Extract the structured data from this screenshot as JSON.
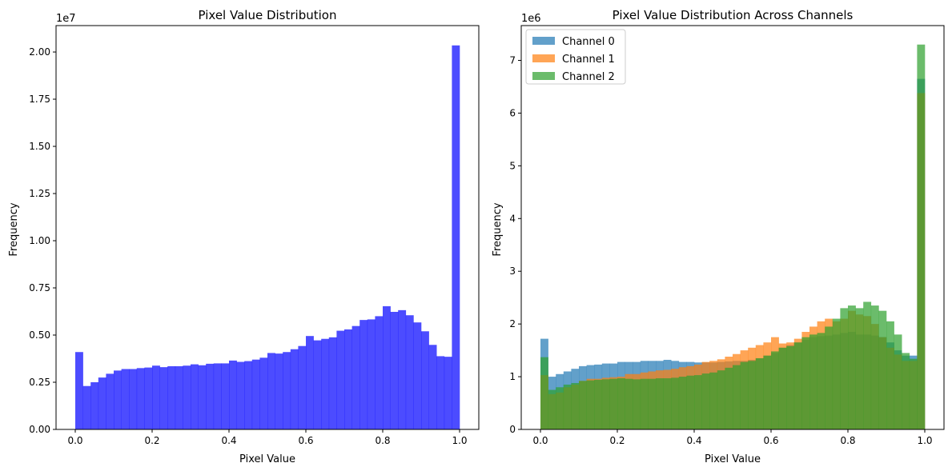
{
  "chart_data": [
    {
      "type": "histogram",
      "title": "Pixel Value Distribution",
      "xlabel": "Pixel Value",
      "ylabel": "Frequency",
      "offset_label": "1e7",
      "xlim": [
        -0.05,
        1.05
      ],
      "ylim": [
        0,
        21400000
      ],
      "xticks": [
        0.0,
        0.2,
        0.4,
        0.6,
        0.8,
        1.0
      ],
      "xtick_labels": [
        "0.0",
        "0.2",
        "0.4",
        "0.6",
        "0.8",
        "1.0"
      ],
      "yticks": [
        0,
        2500000,
        5000000,
        7500000,
        10000000,
        12500000,
        15000000,
        17500000,
        20000000
      ],
      "ytick_labels": [
        "0.00",
        "0.25",
        "0.50",
        "0.75",
        "1.00",
        "1.25",
        "1.50",
        "1.75",
        "2.00"
      ],
      "bin_edges": [
        0.0,
        1.0
      ],
      "bins": 50,
      "grid": false,
      "series": [
        {
          "color": "#0000ff",
          "opacity": 0.7,
          "values": [
            4100000,
            2300000,
            2500000,
            2750000,
            2950000,
            3120000,
            3200000,
            3200000,
            3250000,
            3280000,
            3380000,
            3300000,
            3350000,
            3350000,
            3380000,
            3450000,
            3400000,
            3480000,
            3500000,
            3500000,
            3650000,
            3580000,
            3620000,
            3700000,
            3800000,
            4050000,
            4020000,
            4100000,
            4250000,
            4420000,
            4950000,
            4720000,
            4800000,
            4880000,
            5230000,
            5300000,
            5480000,
            5800000,
            5830000,
            6000000,
            6530000,
            6230000,
            6320000,
            6050000,
            5670000,
            5200000,
            4480000,
            3880000,
            3850000,
            20350000
          ]
        }
      ]
    },
    {
      "type": "histogram",
      "title": "Pixel Value Distribution Across Channels",
      "xlabel": "Pixel Value",
      "ylabel": "Frequency",
      "offset_label": "1e6",
      "xlim": [
        -0.05,
        1.05
      ],
      "ylim": [
        0,
        7660000
      ],
      "xticks": [
        0.0,
        0.2,
        0.4,
        0.6,
        0.8,
        1.0
      ],
      "xtick_labels": [
        "0.0",
        "0.2",
        "0.4",
        "0.6",
        "0.8",
        "1.0"
      ],
      "yticks": [
        0,
        1000000,
        2000000,
        3000000,
        4000000,
        5000000,
        6000000,
        7000000
      ],
      "ytick_labels": [
        "0",
        "1",
        "2",
        "3",
        "4",
        "5",
        "6",
        "7"
      ],
      "bin_edges": [
        0.0,
        1.0
      ],
      "bins": 50,
      "grid": false,
      "legend": "top-left",
      "series": [
        {
          "name": "Channel 0",
          "color": "#1f77b4",
          "opacity": 0.7,
          "values": [
            1720000,
            1000000,
            1050000,
            1100000,
            1150000,
            1200000,
            1220000,
            1230000,
            1250000,
            1250000,
            1280000,
            1280000,
            1280000,
            1300000,
            1300000,
            1300000,
            1320000,
            1300000,
            1280000,
            1280000,
            1270000,
            1270000,
            1270000,
            1280000,
            1290000,
            1300000,
            1300000,
            1320000,
            1350000,
            1400000,
            1450000,
            1550000,
            1600000,
            1650000,
            1700000,
            1750000,
            1770000,
            1780000,
            1800000,
            1830000,
            1850000,
            1800000,
            1800000,
            1780000,
            1750000,
            1650000,
            1500000,
            1400000,
            1400000,
            6650000
          ]
        },
        {
          "name": "Channel 1",
          "color": "#ff7f0e",
          "opacity": 0.7,
          "values": [
            1030000,
            670000,
            700000,
            800000,
            850000,
            920000,
            960000,
            960000,
            980000,
            990000,
            1000000,
            1050000,
            1050000,
            1080000,
            1100000,
            1120000,
            1130000,
            1150000,
            1180000,
            1200000,
            1230000,
            1280000,
            1300000,
            1330000,
            1380000,
            1430000,
            1500000,
            1550000,
            1600000,
            1650000,
            1750000,
            1630000,
            1650000,
            1720000,
            1850000,
            1950000,
            2050000,
            2100000,
            2050000,
            2100000,
            2250000,
            2180000,
            2150000,
            2000000,
            1750000,
            1550000,
            1420000,
            1300000,
            1300000,
            6380000
          ]
        },
        {
          "name": "Channel 2",
          "color": "#2ca02c",
          "opacity": 0.7,
          "values": [
            1370000,
            750000,
            800000,
            850000,
            880000,
            920000,
            930000,
            940000,
            950000,
            960000,
            970000,
            960000,
            950000,
            960000,
            960000,
            970000,
            970000,
            980000,
            1000000,
            1020000,
            1030000,
            1060000,
            1080000,
            1120000,
            1170000,
            1220000,
            1280000,
            1300000,
            1350000,
            1400000,
            1480000,
            1550000,
            1580000,
            1650000,
            1750000,
            1800000,
            1830000,
            1950000,
            2100000,
            2300000,
            2350000,
            2300000,
            2420000,
            2350000,
            2250000,
            2050000,
            1800000,
            1450000,
            1340000,
            7300000
          ]
        }
      ]
    }
  ]
}
